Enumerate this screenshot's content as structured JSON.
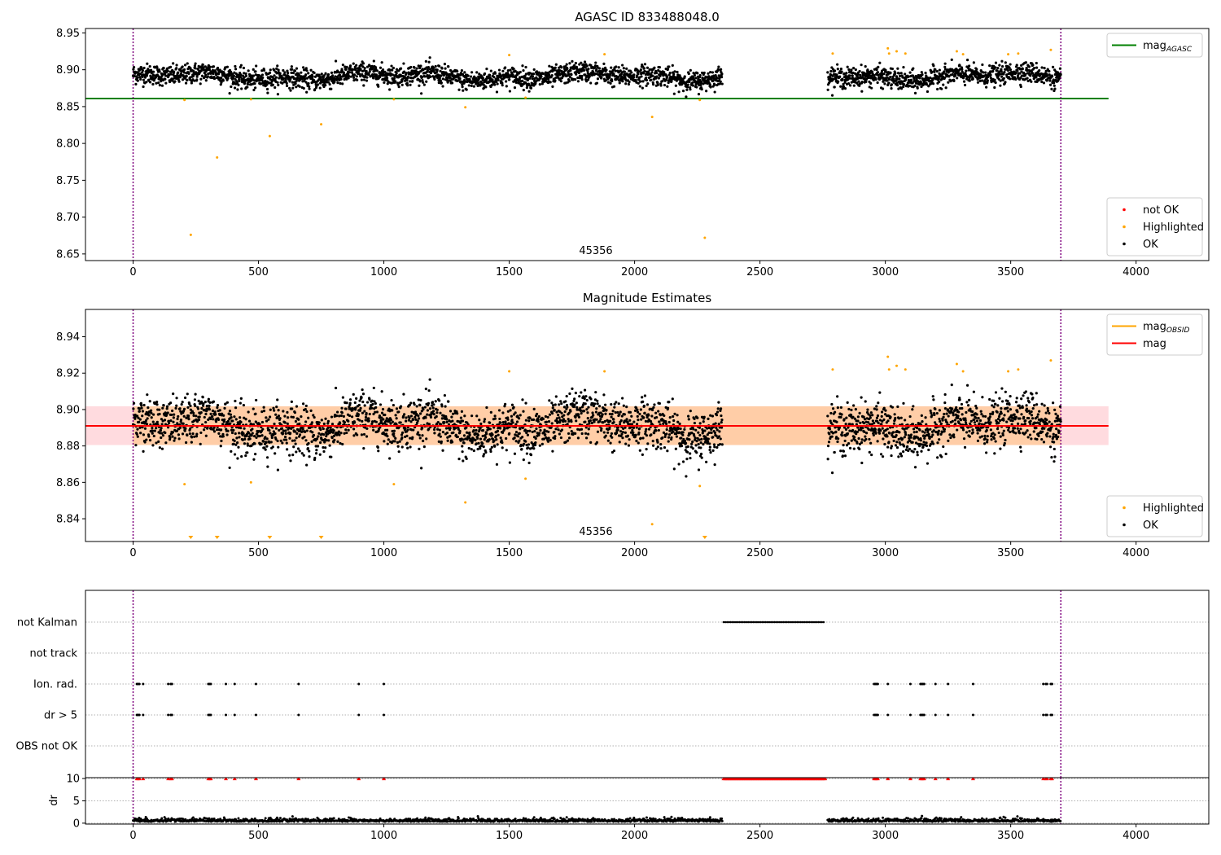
{
  "colors": {
    "ok": "#000000",
    "highlighted": "#ffa500",
    "not_ok": "#ff0000",
    "agasc_line": "#008000",
    "mag_line": "#ff0000",
    "obsid_line": "#ffa500",
    "band": "#ffb7c0",
    "obsid_marker": "#800080"
  },
  "chart_data": [
    {
      "type": "scatter",
      "title": "AGASC ID 833488048.0",
      "xlim": [
        -190,
        4290
      ],
      "ylim": [
        8.641,
        8.956
      ],
      "xticks": [
        0,
        500,
        1000,
        1500,
        2000,
        2500,
        3000,
        3500,
        4000
      ],
      "yticks": [
        8.65,
        8.7,
        8.75,
        8.8,
        8.85,
        8.9,
        8.95
      ],
      "ytick_format": 2,
      "grid": false,
      "mag_agasc": 8.861,
      "hline_xrange": [
        -190,
        3890
      ],
      "obsid_boundaries": [
        0,
        3700
      ],
      "obsid_label": "45356",
      "ok_segments": [
        [
          0,
          2350
        ],
        [
          2770,
          3700
        ]
      ],
      "ok_mean": 8.891,
      "ok_spread": 0.009,
      "highlighted": [
        [
          205,
          8.859
        ],
        [
          230,
          8.676
        ],
        [
          335,
          8.781
        ],
        [
          470,
          8.86
        ],
        [
          545,
          8.81
        ],
        [
          750,
          8.826
        ],
        [
          1040,
          8.86
        ],
        [
          1325,
          8.849
        ],
        [
          1500,
          8.92
        ],
        [
          1565,
          8.862
        ],
        [
          1880,
          8.921
        ],
        [
          2070,
          8.836
        ],
        [
          2260,
          8.859
        ],
        [
          2280,
          8.672
        ],
        [
          2790,
          8.922
        ],
        [
          3010,
          8.929
        ],
        [
          3015,
          8.922
        ],
        [
          3045,
          8.925
        ],
        [
          3080,
          8.922
        ],
        [
          3285,
          8.925
        ],
        [
          3310,
          8.921
        ],
        [
          3490,
          8.921
        ],
        [
          3530,
          8.922
        ],
        [
          3660,
          8.927
        ]
      ],
      "legends": [
        {
          "position": "upper right",
          "entries": [
            {
              "label": "mag",
              "sub": "AGASC",
              "kind": "line",
              "color": "#008000"
            }
          ]
        },
        {
          "position": "lower right",
          "entries": [
            {
              "label": "not OK",
              "kind": "point",
              "color": "#ff0000"
            },
            {
              "label": "Highlighted",
              "kind": "point",
              "color": "#ffa500"
            },
            {
              "label": "OK",
              "kind": "point",
              "color": "#000000"
            }
          ]
        }
      ]
    },
    {
      "type": "scatter",
      "title": "Magnitude Estimates",
      "xlim": [
        -190,
        4290
      ],
      "ylim": [
        8.8275,
        8.955
      ],
      "xticks": [
        0,
        500,
        1000,
        1500,
        2000,
        2500,
        3000,
        3500,
        4000
      ],
      "yticks": [
        8.84,
        8.86,
        8.88,
        8.9,
        8.92,
        8.94
      ],
      "ytick_format": 2,
      "grid": false,
      "mag": 8.891,
      "mag_band": [
        8.8805,
        8.9018
      ],
      "hline_xrange": [
        -190,
        3890
      ],
      "obsid_boundaries": [
        0,
        3700
      ],
      "obsid_label": "45356",
      "ok_segments": [
        [
          0,
          2350
        ],
        [
          2770,
          3700
        ]
      ],
      "ok_mean": 8.891,
      "ok_spread": 0.009,
      "highlighted": [
        [
          205,
          8.859
        ],
        [
          470,
          8.86
        ],
        [
          1040,
          8.859
        ],
        [
          1325,
          8.849
        ],
        [
          1500,
          8.921
        ],
        [
          1565,
          8.862
        ],
        [
          1880,
          8.921
        ],
        [
          2070,
          8.837
        ],
        [
          2260,
          8.858
        ],
        [
          2790,
          8.922
        ],
        [
          3010,
          8.929
        ],
        [
          3015,
          8.922
        ],
        [
          3045,
          8.924
        ],
        [
          3080,
          8.922
        ],
        [
          3285,
          8.925
        ],
        [
          3310,
          8.921
        ],
        [
          3490,
          8.921
        ],
        [
          3530,
          8.922
        ],
        [
          3660,
          8.927
        ]
      ],
      "offscale_low": [
        230,
        335,
        545,
        750,
        2280
      ],
      "legends": [
        {
          "position": "upper right",
          "entries": [
            {
              "label": "mag",
              "sub": "OBSID",
              "kind": "line",
              "color": "#ffa500"
            },
            {
              "label": "mag",
              "kind": "line",
              "color": "#ff0000"
            }
          ]
        },
        {
          "position": "lower right",
          "entries": [
            {
              "label": "Highlighted",
              "kind": "point",
              "color": "#ffa500"
            },
            {
              "label": "OK",
              "kind": "point",
              "color": "#000000"
            }
          ]
        }
      ]
    },
    {
      "type": "scatter",
      "title": "",
      "xlim": [
        -190,
        4290
      ],
      "xticks": [],
      "grid": "horizontal dotted",
      "obsid_boundaries": [
        0,
        3700
      ],
      "flag_rows": [
        "not Kalman",
        "not track",
        "Ion. rad.",
        "dr > 5",
        "OBS not OK"
      ],
      "flags": {
        "not Kalman": {
          "ranges": [
            [
              2355,
              2760
            ]
          ],
          "times": []
        },
        "not track": {
          "ranges": [],
          "times": []
        },
        "Ion. rad.": {
          "ranges": [],
          "times": [
            15,
            20,
            25,
            40,
            140,
            150,
            155,
            300,
            305,
            310,
            370,
            405,
            490,
            660,
            900,
            1000,
            2955,
            2960,
            2965,
            2970,
            3010,
            3100,
            3140,
            3145,
            3150,
            3155,
            3200,
            3250,
            3350,
            3630,
            3640,
            3645,
            3660,
            3665
          ]
        },
        "dr > 5": {
          "ranges": [],
          "times": [
            15,
            20,
            25,
            40,
            140,
            150,
            155,
            300,
            305,
            310,
            370,
            405,
            490,
            660,
            900,
            1000,
            2955,
            2960,
            2965,
            2970,
            3010,
            3100,
            3140,
            3145,
            3150,
            3155,
            3200,
            3250,
            3350,
            3630,
            3640,
            3645,
            3660,
            3665
          ]
        },
        "OBS not OK": {
          "ranges": [],
          "times": []
        }
      }
    },
    {
      "type": "scatter",
      "title": "",
      "ylabel": "dr",
      "xlim": [
        -190,
        4290
      ],
      "ylim": [
        -0.2,
        10.2
      ],
      "xticks": [
        0,
        500,
        1000,
        1500,
        2000,
        2500,
        3000,
        3500,
        4000
      ],
      "yticks": [
        0,
        5,
        10
      ],
      "ytick_format": 0,
      "grid": "horizontal dotted",
      "obsid_boundaries": [
        0,
        3700
      ],
      "dr_ok_segments": [
        [
          0,
          2350
        ],
        [
          2770,
          3700
        ]
      ],
      "dr_mean": 0.5,
      "clipped_value": 10,
      "clipped_ranges": [
        [
          2355,
          2760
        ]
      ],
      "clipped_times": [
        15,
        20,
        25,
        40,
        140,
        150,
        155,
        300,
        305,
        310,
        370,
        405,
        490,
        660,
        900,
        1000,
        2955,
        2960,
        2965,
        2970,
        3010,
        3100,
        3140,
        3145,
        3150,
        3155,
        3200,
        3250,
        3350,
        3630,
        3640,
        3645,
        3660,
        3665
      ]
    }
  ]
}
